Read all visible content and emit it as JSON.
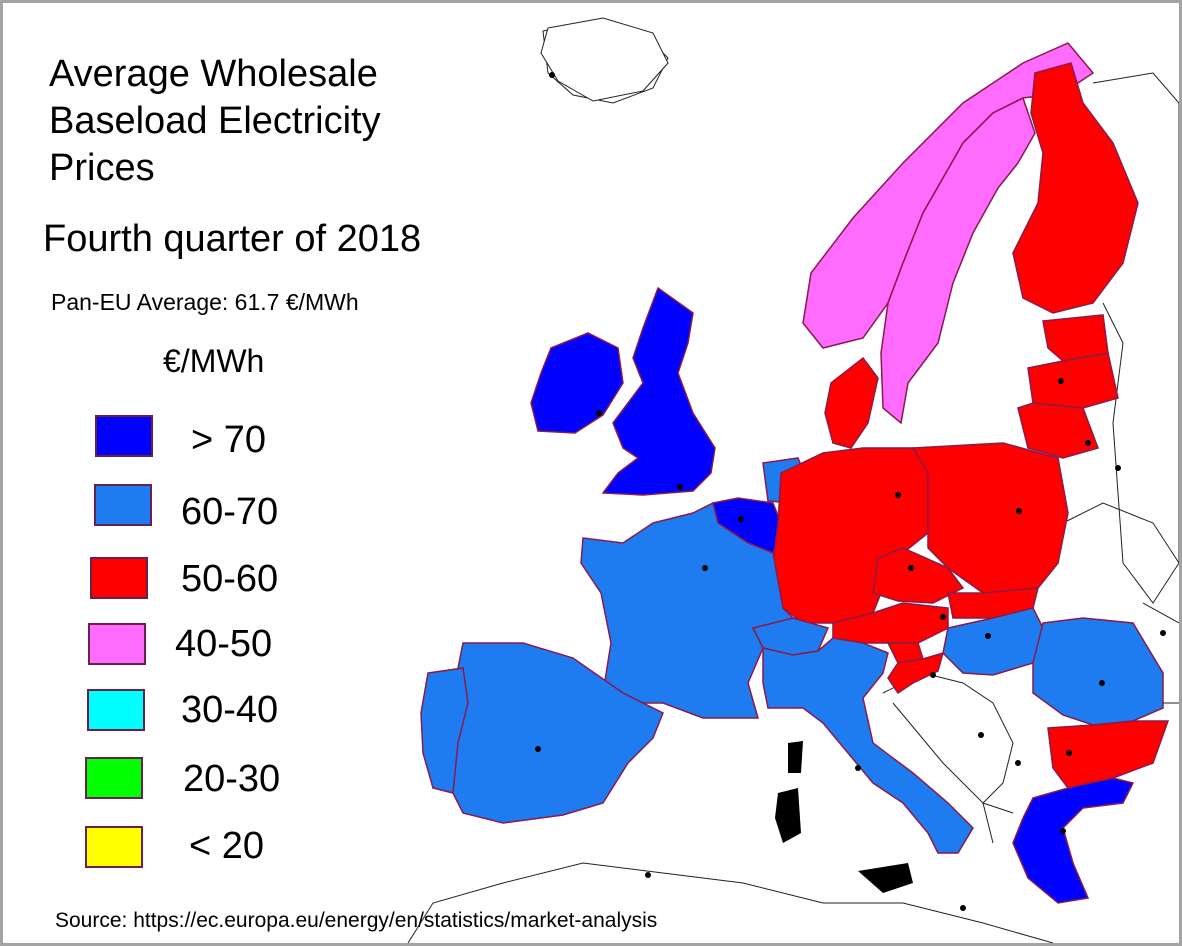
{
  "title": "Average Wholesale\nBaseload Electricity\nPrices",
  "subtitle": "Fourth quarter of 2018",
  "pan_eu_average": "Pan-EU Average: 61.7 €/MWh",
  "unit": "€/MWh",
  "legend": [
    {
      "label": "> 70",
      "color": "#0000ff"
    },
    {
      "label": "60-70",
      "color": "#1e7cf0"
    },
    {
      "label": "50-60",
      "color": "#ff0000"
    },
    {
      "label": "40-50",
      "color": "#ff6aff"
    },
    {
      "label": "30-40",
      "color": "#00ffff"
    },
    {
      "label": "20-30",
      "color": "#00ff00"
    },
    {
      "label": "< 20",
      "color": "#ffff00"
    }
  ],
  "source": "Source: https://ec.europa.eu/energy/en/statistics/market-analysis",
  "map_regions": [
    {
      "name": "Ireland",
      "band": "> 70"
    },
    {
      "name": "United Kingdom",
      "band": "> 70"
    },
    {
      "name": "Belgium",
      "band": "> 70"
    },
    {
      "name": "Greece",
      "band": "> 70"
    },
    {
      "name": "France",
      "band": "60-70"
    },
    {
      "name": "Spain",
      "band": "60-70"
    },
    {
      "name": "Portugal",
      "band": "60-70"
    },
    {
      "name": "Italy",
      "band": "60-70"
    },
    {
      "name": "Netherlands",
      "band": "60-70"
    },
    {
      "name": "Switzerland",
      "band": "60-70"
    },
    {
      "name": "Hungary",
      "band": "60-70"
    },
    {
      "name": "Romania",
      "band": "60-70"
    },
    {
      "name": "Germany",
      "band": "50-60"
    },
    {
      "name": "Poland",
      "band": "50-60"
    },
    {
      "name": "Czechia",
      "band": "50-60"
    },
    {
      "name": "Austria",
      "band": "50-60"
    },
    {
      "name": "Slovakia",
      "band": "50-60"
    },
    {
      "name": "Slovenia",
      "band": "50-60"
    },
    {
      "name": "Croatia",
      "band": "50-60"
    },
    {
      "name": "Denmark",
      "band": "50-60"
    },
    {
      "name": "Finland",
      "band": "50-60"
    },
    {
      "name": "Estonia",
      "band": "50-60"
    },
    {
      "name": "Latvia",
      "band": "50-60"
    },
    {
      "name": "Lithuania",
      "band": "50-60"
    },
    {
      "name": "Bulgaria",
      "band": "50-60"
    },
    {
      "name": "Sweden",
      "band": "40-50"
    },
    {
      "name": "Norway",
      "band": "40-50"
    }
  ]
}
